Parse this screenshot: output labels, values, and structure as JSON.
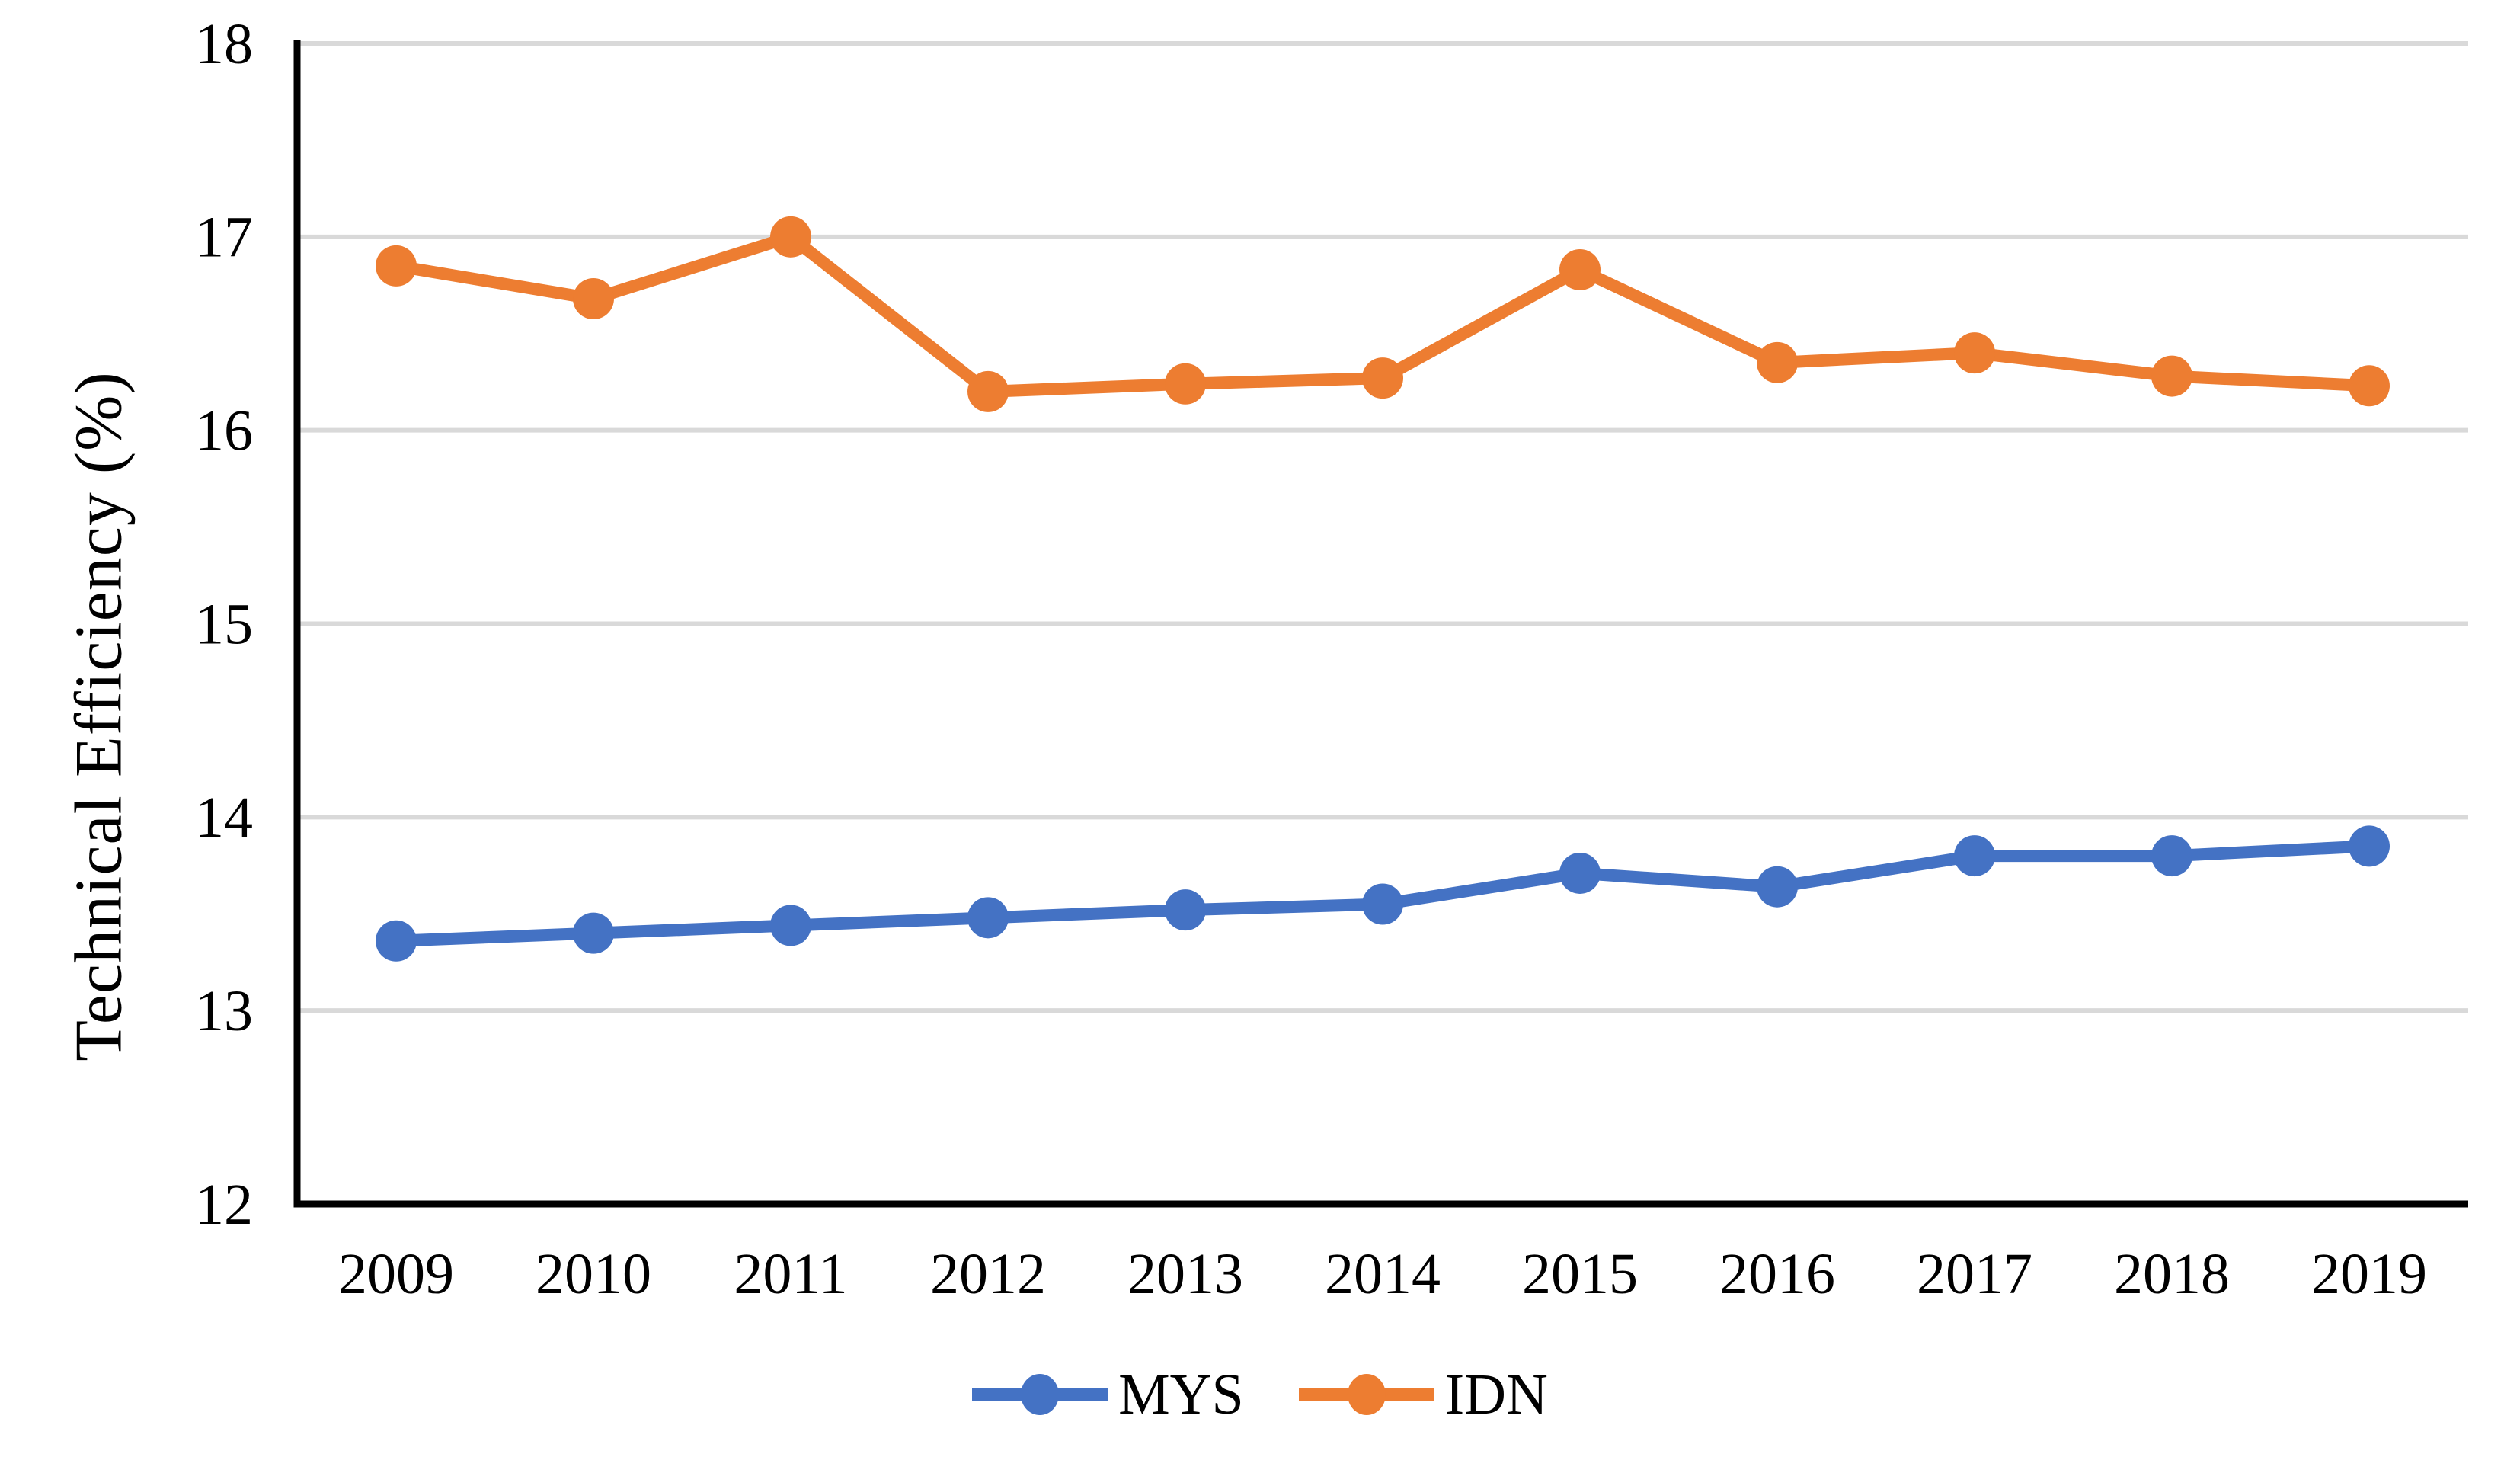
{
  "figure": {
    "background": "#FFFFFF",
    "title": ""
  },
  "chart_data": {
    "type": "line",
    "title": "",
    "xlabel": "",
    "ylabel": "Technical Efficiency (%)",
    "categories": [
      "2009",
      "2010",
      "2011",
      "2012",
      "2013",
      "2014",
      "2015",
      "2016",
      "2017",
      "2018",
      "2019"
    ],
    "series": [
      {
        "name": "MYS",
        "color": "#4472C4",
        "marker": "circle",
        "values": [
          13.36,
          13.4,
          13.44,
          13.48,
          13.52,
          13.55,
          13.71,
          13.64,
          13.8,
          13.8,
          13.85
        ]
      },
      {
        "name": "IDN",
        "color": "#ED7D31",
        "marker": "circle",
        "values": [
          16.85,
          16.68,
          17.0,
          16.2,
          16.24,
          16.27,
          16.83,
          16.35,
          16.4,
          16.28,
          16.23
        ]
      }
    ],
    "ylim": [
      12,
      18
    ],
    "yticks": [
      "12",
      "13",
      "14",
      "15",
      "16",
      "17",
      "18"
    ],
    "grid": "horizontal",
    "gridline_color": "#D9D9D9",
    "axis_color": "#000000",
    "text_color": "#000000",
    "legend_position": "bottom"
  }
}
